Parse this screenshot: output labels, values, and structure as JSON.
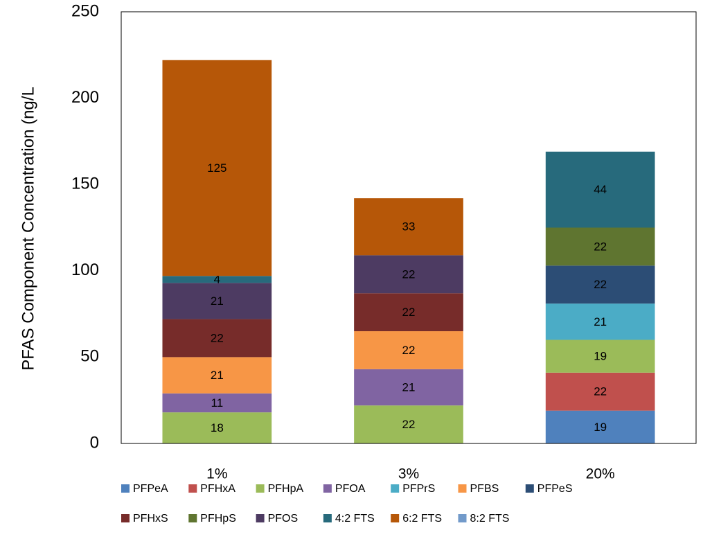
{
  "chart_data": {
    "type": "stacked_bar",
    "y_label": "PFAS Component Concentration (ng/L",
    "categories": [
      "1%",
      "3%",
      "20%"
    ],
    "ylim": [
      0,
      250
    ],
    "yticks": [
      0,
      50,
      100,
      150,
      200,
      250
    ],
    "grid": false,
    "legend": "bottom",
    "series": [
      {
        "name": "PFPeA",
        "color": "#4f81bd",
        "values": [
          null,
          null,
          19
        ]
      },
      {
        "name": "PFHxA",
        "color": "#c0504d",
        "values": [
          null,
          null,
          22
        ]
      },
      {
        "name": "PFHpA",
        "color": "#9bbb59",
        "values": [
          18,
          22,
          19
        ]
      },
      {
        "name": "PFOA",
        "color": "#8064a2",
        "values": [
          11,
          21,
          null
        ]
      },
      {
        "name": "PFPrS",
        "color": "#4bacc6",
        "values": [
          null,
          null,
          21
        ]
      },
      {
        "name": "PFBS",
        "color": "#f79646",
        "values": [
          21,
          22,
          null
        ]
      },
      {
        "name": "PFPeS",
        "color": "#2c4d75",
        "values": [
          null,
          null,
          22
        ]
      },
      {
        "name": "PFHxS",
        "color": "#772c2a",
        "values": [
          22,
          22,
          null
        ]
      },
      {
        "name": "PFHpS",
        "color": "#5f7530",
        "values": [
          null,
          null,
          22
        ]
      },
      {
        "name": "PFOS",
        "color": "#4d3b62",
        "values": [
          21,
          22,
          null
        ]
      },
      {
        "name": "4:2 FTS",
        "color": "#276a7c",
        "values": [
          4,
          null,
          44
        ]
      },
      {
        "name": "6:2 FTS",
        "color": "#b65708",
        "values": [
          125,
          33,
          null
        ]
      },
      {
        "name": "8:2 FTS",
        "color": "#729aca",
        "values": [
          null,
          null,
          null
        ]
      }
    ]
  }
}
